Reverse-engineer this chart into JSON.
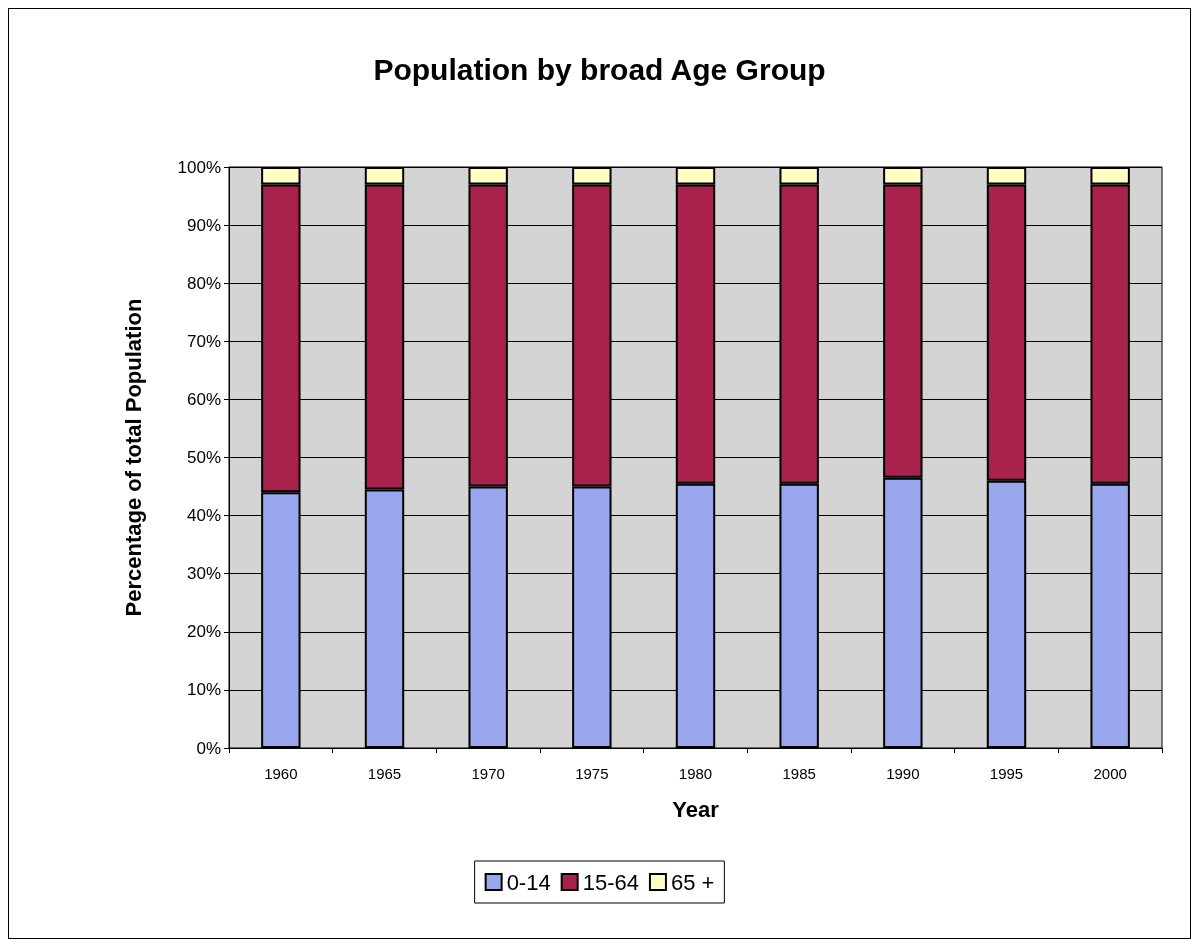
{
  "chart_data": {
    "type": "bar",
    "title": "Population by broad Age Group",
    "xlabel": "Year",
    "ylabel": "Percentage of total Population",
    "categories": [
      "1960",
      "1965",
      "1970",
      "1975",
      "1980",
      "1985",
      "1990",
      "1995",
      "2000"
    ],
    "series": [
      {
        "name": "0-14",
        "color": "#99a8ee",
        "values": [
          44,
          44.5,
          45,
          45,
          45.5,
          45.5,
          46.5,
          46,
          45.5
        ]
      },
      {
        "name": "15-64",
        "color": "#a8224c",
        "values": [
          53,
          52.5,
          52,
          52,
          51.5,
          51.5,
          50.5,
          51,
          51.5
        ]
      },
      {
        "name": "65 +",
        "color": "#ffffc4",
        "values": [
          3,
          3,
          3,
          3,
          3,
          3,
          3,
          3,
          3
        ]
      }
    ],
    "stacked": true,
    "ylim": [
      0,
      100
    ],
    "yticks": [
      {
        "value": 0,
        "label": "0%"
      },
      {
        "value": 10,
        "label": "10%"
      },
      {
        "value": 20,
        "label": "20%"
      },
      {
        "value": 30,
        "label": "30%"
      },
      {
        "value": 40,
        "label": "40%"
      },
      {
        "value": 50,
        "label": "50%"
      },
      {
        "value": 60,
        "label": "60%"
      },
      {
        "value": 70,
        "label": "70%"
      },
      {
        "value": 80,
        "label": "80%"
      },
      {
        "value": 90,
        "label": "90%"
      },
      {
        "value": 100,
        "label": "100%"
      }
    ],
    "grid": "y",
    "legend": "bottom"
  }
}
